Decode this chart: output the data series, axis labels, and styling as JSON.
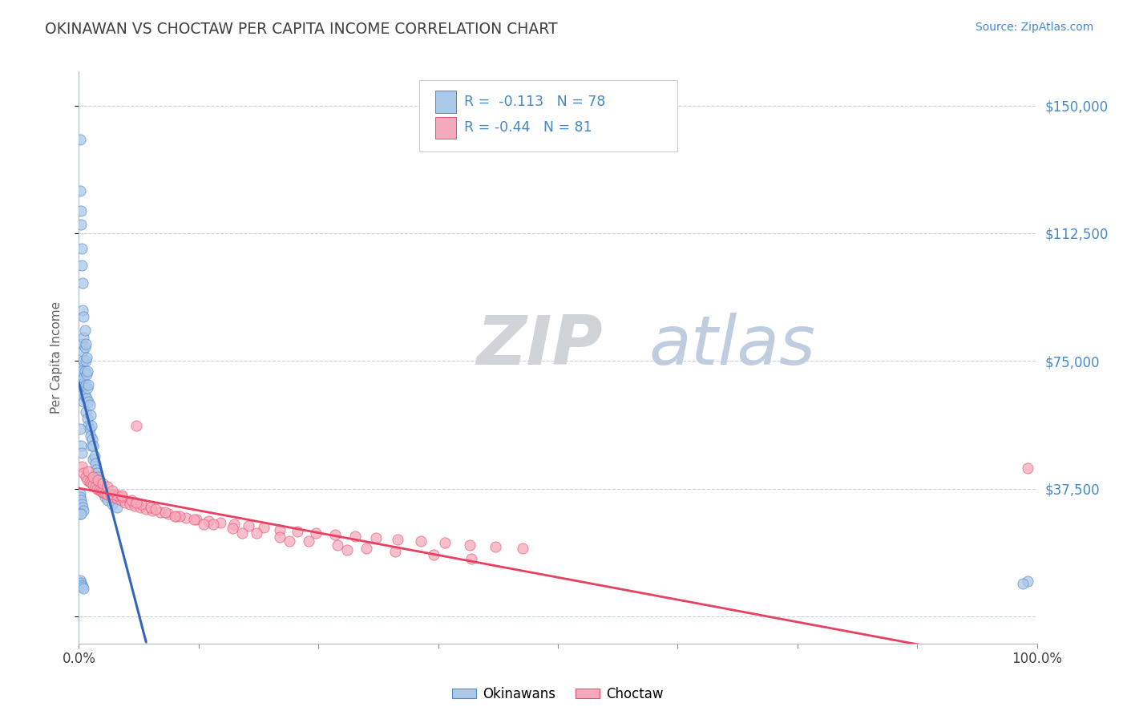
{
  "title": "OKINAWAN VS CHOCTAW PER CAPITA INCOME CORRELATION CHART",
  "source": "Source: ZipAtlas.com",
  "ylabel": "Per Capita Income",
  "xlim": [
    0.0,
    1.0
  ],
  "ylim": [
    -8000,
    160000
  ],
  "yticks": [
    0,
    37500,
    75000,
    112500,
    150000
  ],
  "ytick_labels": [
    "",
    "$37,500",
    "$75,000",
    "$112,500",
    "$150,000"
  ],
  "okinawan_R": -0.113,
  "okinawan_N": 78,
  "choctaw_R": -0.44,
  "choctaw_N": 81,
  "okinawan_color": "#aac8e8",
  "choctaw_color": "#f5aabb",
  "okinawan_edge_color": "#5588cc",
  "choctaw_edge_color": "#e85070",
  "okinawan_line_color": "#3366bb",
  "choctaw_line_color": "#e84060",
  "title_color": "#404040",
  "source_color": "#4488cc",
  "axis_label_color": "#606060",
  "right_tick_color": "#4488cc",
  "background_color": "#ffffff",
  "grid_color": "#c8d0dc",
  "watermark_ZIP_color": "#d0d4d8",
  "watermark_atlas_color": "#c0cce0",
  "okinawan_scatter_x": [
    0.001,
    0.001,
    0.001,
    0.002,
    0.002,
    0.002,
    0.002,
    0.003,
    0.003,
    0.003,
    0.003,
    0.003,
    0.004,
    0.004,
    0.004,
    0.004,
    0.005,
    0.005,
    0.005,
    0.005,
    0.005,
    0.006,
    0.006,
    0.006,
    0.006,
    0.007,
    0.007,
    0.007,
    0.007,
    0.008,
    0.008,
    0.008,
    0.009,
    0.009,
    0.009,
    0.01,
    0.01,
    0.01,
    0.011,
    0.011,
    0.012,
    0.012,
    0.013,
    0.013,
    0.014,
    0.015,
    0.015,
    0.016,
    0.017,
    0.018,
    0.019,
    0.02,
    0.021,
    0.022,
    0.023,
    0.025,
    0.027,
    0.03,
    0.035,
    0.04,
    0.002,
    0.003,
    0.001,
    0.001,
    0.002,
    0.003,
    0.004,
    0.005,
    0.001,
    0.002,
    0.001,
    0.002,
    0.003,
    0.004,
    0.005,
    0.99,
    0.985,
    0.001
  ],
  "okinawan_scatter_y": [
    140000,
    125000,
    70000,
    119000,
    115000,
    73000,
    68000,
    108000,
    103000,
    80000,
    72000,
    65000,
    98000,
    90000,
    78000,
    68000,
    88000,
    82000,
    75000,
    70000,
    63000,
    84000,
    79000,
    72000,
    65000,
    80000,
    75000,
    68000,
    60000,
    76000,
    71000,
    64000,
    72000,
    67000,
    58000,
    68000,
    63000,
    56000,
    62000,
    55000,
    59000,
    53000,
    56000,
    50000,
    52000,
    50000,
    46000,
    47000,
    45000,
    43000,
    42000,
    41000,
    40000,
    39000,
    38000,
    36500,
    35000,
    34000,
    33000,
    32000,
    50000,
    48000,
    36000,
    35000,
    34000,
    33000,
    32000,
    31000,
    30000,
    30000,
    10500,
    9800,
    9200,
    8600,
    8100,
    10200,
    9500,
    55000
  ],
  "choctaw_scatter_x": [
    0.003,
    0.005,
    0.007,
    0.009,
    0.011,
    0.013,
    0.015,
    0.017,
    0.019,
    0.021,
    0.023,
    0.025,
    0.027,
    0.03,
    0.033,
    0.036,
    0.04,
    0.044,
    0.048,
    0.053,
    0.058,
    0.064,
    0.07,
    0.077,
    0.085,
    0.093,
    0.102,
    0.112,
    0.123,
    0.135,
    0.148,
    0.162,
    0.177,
    0.193,
    0.21,
    0.228,
    0.247,
    0.267,
    0.288,
    0.31,
    0.333,
    0.357,
    0.382,
    0.408,
    0.435,
    0.463,
    0.035,
    0.04,
    0.045,
    0.055,
    0.065,
    0.075,
    0.09,
    0.105,
    0.12,
    0.14,
    0.16,
    0.185,
    0.21,
    0.24,
    0.27,
    0.3,
    0.33,
    0.37,
    0.41,
    0.01,
    0.015,
    0.02,
    0.025,
    0.03,
    0.035,
    0.045,
    0.06,
    0.08,
    0.1,
    0.13,
    0.17,
    0.22,
    0.28,
    0.99,
    0.06
  ],
  "choctaw_scatter_y": [
    44000,
    42000,
    41000,
    40000,
    39500,
    39000,
    38500,
    38000,
    37500,
    37200,
    36800,
    36500,
    36200,
    35800,
    35500,
    35000,
    34500,
    34000,
    33500,
    33000,
    32500,
    32000,
    31500,
    31000,
    30500,
    30000,
    29500,
    29000,
    28500,
    28000,
    27500,
    27000,
    26500,
    26000,
    25500,
    25000,
    24500,
    24000,
    23500,
    23000,
    22500,
    22000,
    21500,
    21000,
    20500,
    20000,
    36000,
    35500,
    35000,
    34000,
    33000,
    32000,
    30500,
    29500,
    28500,
    27000,
    25800,
    24500,
    23200,
    22000,
    21000,
    20000,
    19000,
    18000,
    17000,
    42500,
    41000,
    40000,
    39000,
    38000,
    37000,
    35500,
    33500,
    31500,
    29500,
    27000,
    24500,
    22000,
    19500,
    43500,
    56000
  ]
}
